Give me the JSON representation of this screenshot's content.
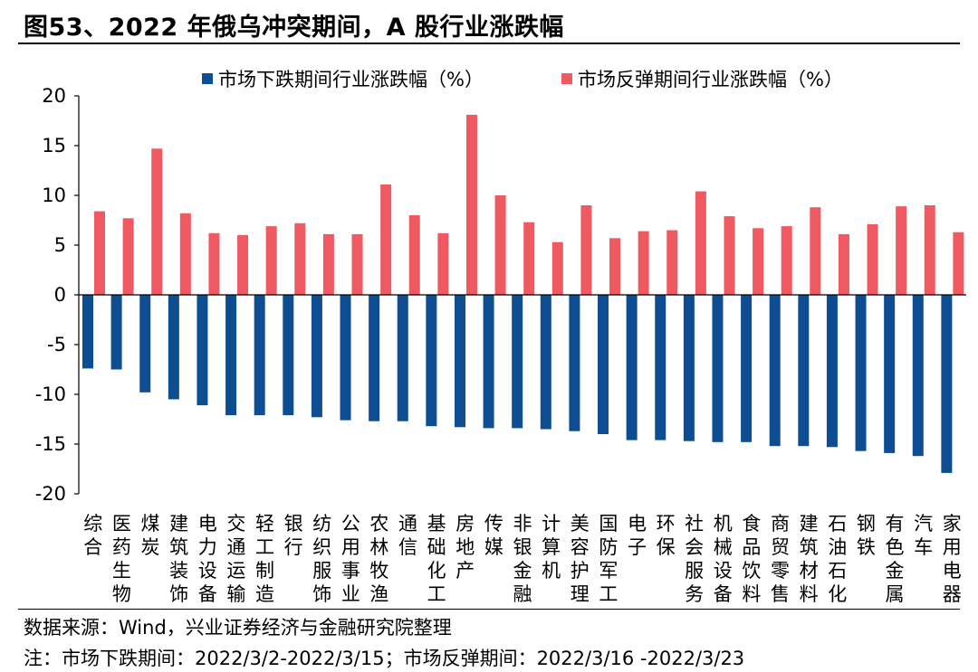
{
  "title": "图53、2022 年俄乌冲突期间，A 股行业涨跌幅",
  "source_note": "数据来源：Wind，兴业证券经济与金融研究院整理",
  "period_note": "注：市场下跌期间：2022/3/2-2022/3/15；市场反弹期间：2022/3/16 -2022/3/23",
  "colors": {
    "down": "#0e4d92",
    "rebound": "#ef5a62",
    "axis": "#000000"
  },
  "chart_data": {
    "type": "bar",
    "title": "图53、2022 年俄乌冲突期间，A 股行业涨跌幅",
    "xlabel": "",
    "ylabel": "",
    "ylim": [
      -20,
      20
    ],
    "yticks": [
      20,
      15,
      10,
      5,
      0,
      -5,
      -10,
      -15,
      -20
    ],
    "grid": false,
    "legend_position": "top-center",
    "categories": [
      "综合",
      "医药生物",
      "煤炭",
      "建筑装饰",
      "电力设备",
      "交通运输",
      "轻工制造",
      "银行",
      "纺织服饰",
      "公用事业",
      "农林牧渔",
      "通信",
      "基础化工",
      "房地产",
      "传媒",
      "非银金融",
      "计算机",
      "美容护理",
      "国防军工",
      "电子",
      "环保",
      "社会服务",
      "机械设备",
      "食品饮料",
      "商贸零售",
      "建筑材料",
      "石油石化",
      "钢铁",
      "有色金属",
      "汽车",
      "家用电器"
    ],
    "series": [
      {
        "name": "市场下跌期间行业涨跌幅（%）",
        "color": "#0e4d92",
        "values": [
          -7.4,
          -7.5,
          -9.8,
          -10.5,
          -11.1,
          -12.1,
          -12.1,
          -12.1,
          -12.3,
          -12.6,
          -12.7,
          -12.7,
          -13.2,
          -13.3,
          -13.4,
          -13.4,
          -13.5,
          -13.7,
          -14.0,
          -14.6,
          -14.6,
          -14.7,
          -14.8,
          -14.8,
          -15.2,
          -15.2,
          -15.3,
          -15.7,
          -15.9,
          -16.2,
          -17.9
        ]
      },
      {
        "name": "市场反弹期间行业涨跌幅（%）",
        "color": "#ef5a62",
        "values": [
          8.4,
          7.7,
          14.7,
          8.2,
          6.2,
          6.0,
          6.9,
          7.2,
          6.1,
          6.1,
          11.1,
          8.0,
          6.2,
          18.1,
          10.0,
          7.3,
          5.3,
          9.0,
          5.7,
          6.4,
          6.5,
          10.4,
          7.9,
          6.7,
          6.9,
          8.8,
          6.1,
          7.1,
          8.9,
          9.0,
          6.3
        ]
      }
    ]
  }
}
